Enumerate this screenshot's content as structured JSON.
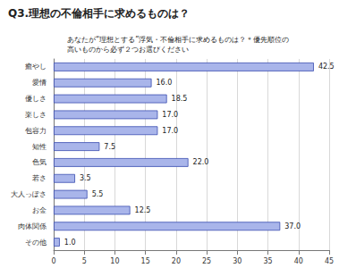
{
  "chart_data": {
    "type": "bar",
    "title": "Q3.理想の不倫相手に求めるものは？",
    "subtitle": "あなたが“理想とする”浮気・不倫相手に求めるものは？＊優先順位の高いものから必ず２つお選びください",
    "orientation": "horizontal",
    "categories": [
      "癒やし",
      "愛情",
      "優しさ",
      "楽しさ",
      "包容力",
      "知性",
      "色気",
      "若さ",
      "大人っぽさ",
      "お金",
      "肉体関係",
      "その他"
    ],
    "values": [
      42.5,
      16.0,
      18.5,
      17.0,
      17.0,
      7.5,
      22.0,
      3.5,
      5.5,
      12.5,
      37.0,
      1.0
    ],
    "value_labels": [
      "42.5",
      "16.0",
      "18.5",
      "17.0",
      "17.0",
      "7.5",
      "22.0",
      "3.5",
      "5.5",
      "12.5",
      "37.0",
      "1.0"
    ],
    "data_labels": true,
    "color": "#a9b5ea",
    "xlim": [
      0,
      45
    ],
    "xticks": [
      0,
      5,
      10,
      15,
      20,
      25,
      30,
      35,
      40,
      45
    ],
    "grid": true
  }
}
